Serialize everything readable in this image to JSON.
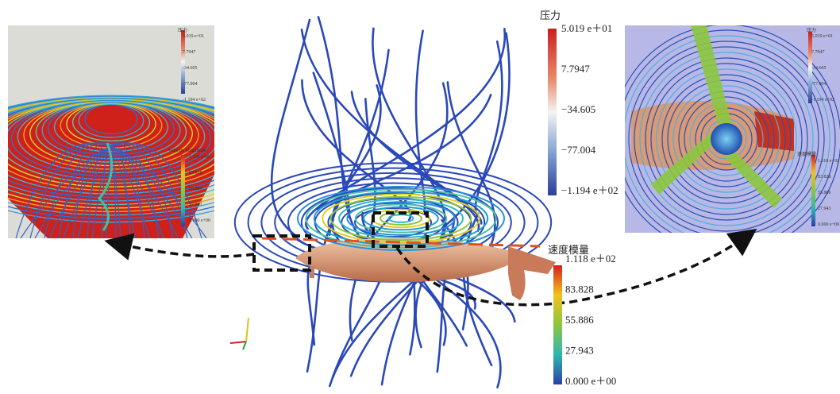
{
  "pressure_bar": {
    "title": "压力",
    "labels": [
      "5.019 e＋01",
      "7.7947",
      "−34.605",
      "−77.004",
      "−1.194 e＋02"
    ]
  },
  "velocity_bar": {
    "title": "速度模量",
    "labels": [
      "1.118 e＋02",
      "83.828",
      "55.886",
      "27.943",
      "0.000 e＋00"
    ]
  },
  "left_inset": {
    "pressure_title": "压力",
    "pressure_labels": [
      "5.019 e+01",
      "7.7947",
      "-34.605",
      "-77.004",
      "-1.194 e+02"
    ],
    "velocity_title": "Velocity Magnitude",
    "velocity_labels": [
      "1.118 e+02",
      "83.828",
      "55.886",
      "27.943",
      "0.000 e+00"
    ]
  },
  "right_inset": {
    "pressure_title": "压力",
    "pressure_labels": [
      "5.019 e+01",
      "7.7947",
      "-34.605",
      "-77.004",
      "-1.194 e+02"
    ],
    "velocity_title": "速度模量",
    "velocity_labels": [
      "1.118 e+02",
      "83.828",
      "55.886",
      "27.943",
      "0.000 e+00"
    ]
  }
}
